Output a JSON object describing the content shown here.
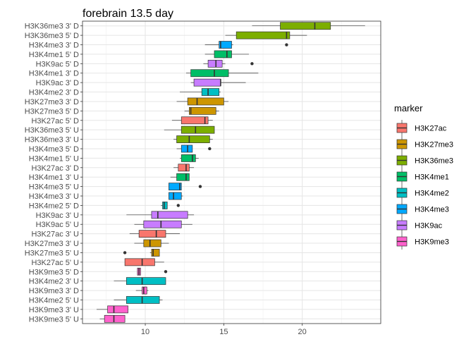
{
  "chart_data": {
    "type": "boxplot",
    "orientation": "horizontal",
    "title": "forebrain 13.5 day",
    "xlim": [
      6.0,
      25.0
    ],
    "x_ticks": [
      10,
      15,
      20
    ],
    "grid": true,
    "legend_position": "right",
    "legend": {
      "title": "marker",
      "entries": [
        {
          "name": "H3K27ac",
          "color": "#F8766D"
        },
        {
          "name": "H3K27me3",
          "color": "#CD9600"
        },
        {
          "name": "H3K36me3",
          "color": "#7CAE00"
        },
        {
          "name": "H3K4me1",
          "color": "#00BE67"
        },
        {
          "name": "H3K4me2",
          "color": "#00BFC4"
        },
        {
          "name": "H3K4me3",
          "color": "#00A9FF"
        },
        {
          "name": "H3K9ac",
          "color": "#C77CFF"
        },
        {
          "name": "H3K9me3",
          "color": "#FF61CC"
        }
      ]
    },
    "boxes": [
      {
        "label": "H3K36me3 3' D",
        "marker": "H3K36me3",
        "min": 16.8,
        "q1": 18.6,
        "median": 20.8,
        "q3": 21.8,
        "max": 24.0,
        "outliers": []
      },
      {
        "label": "H3K36me3 5' D",
        "marker": "H3K36me3",
        "min": 15.1,
        "q1": 15.8,
        "median": 19.0,
        "q3": 19.2,
        "max": 20.3,
        "outliers": []
      },
      {
        "label": "H3K4me3 3' D",
        "marker": "H3K4me3",
        "min": 13.8,
        "q1": 14.7,
        "median": 14.8,
        "q3": 15.5,
        "max": 15.6,
        "outliers": [
          19.0
        ]
      },
      {
        "label": "H3K4me1 5' D",
        "marker": "H3K4me1",
        "min": 13.8,
        "q1": 14.4,
        "median": 15.2,
        "q3": 15.5,
        "max": 16.6,
        "outliers": []
      },
      {
        "label": "H3K9ac 5' D",
        "marker": "H3K9ac",
        "min": 13.7,
        "q1": 14.0,
        "median": 14.5,
        "q3": 14.9,
        "max": 15.1,
        "outliers": [
          16.8
        ]
      },
      {
        "label": "H3K4me1 3' D",
        "marker": "H3K4me1",
        "min": 12.6,
        "q1": 12.9,
        "median": 14.4,
        "q3": 15.3,
        "max": 17.2,
        "outliers": []
      },
      {
        "label": "H3K9ac 3' D",
        "marker": "H3K9ac",
        "min": 12.9,
        "q1": 13.1,
        "median": 14.8,
        "q3": 14.8,
        "max": 16.4,
        "outliers": []
      },
      {
        "label": "H3K4me2 3' D",
        "marker": "H3K4me2",
        "min": 12.2,
        "q1": 13.6,
        "median": 14.0,
        "q3": 14.7,
        "max": 14.8,
        "outliers": []
      },
      {
        "label": "H3K27me3 3' D",
        "marker": "H3K27me3",
        "min": 12.0,
        "q1": 12.7,
        "median": 13.3,
        "q3": 15.0,
        "max": 15.3,
        "outliers": []
      },
      {
        "label": "H3K27me3 5' D",
        "marker": "H3K27me3",
        "min": 12.5,
        "q1": 12.8,
        "median": 12.9,
        "q3": 14.5,
        "max": 14.7,
        "outliers": []
      },
      {
        "label": "H3K27ac 5' D",
        "marker": "H3K27ac",
        "min": 11.7,
        "q1": 12.3,
        "median": 13.8,
        "q3": 14.0,
        "max": 14.3,
        "outliers": []
      },
      {
        "label": "H3K36me3 5' U",
        "marker": "H3K36me3",
        "min": 11.2,
        "q1": 12.3,
        "median": 13.2,
        "q3": 14.4,
        "max": 14.4,
        "outliers": []
      },
      {
        "label": "H3K36me3 3' U",
        "marker": "H3K36me3",
        "min": 11.8,
        "q1": 12.0,
        "median": 12.8,
        "q3": 14.1,
        "max": 14.3,
        "outliers": []
      },
      {
        "label": "H3K4me3 5' D",
        "marker": "H3K4me3",
        "min": 12.0,
        "q1": 12.3,
        "median": 12.7,
        "q3": 13.0,
        "max": 13.0,
        "outliers": [
          14.1
        ]
      },
      {
        "label": "H3K4me1 5' U",
        "marker": "H3K4me1",
        "min": 12.2,
        "q1": 12.3,
        "median": 13.0,
        "q3": 13.2,
        "max": 13.4,
        "outliers": []
      },
      {
        "label": "H3K27ac 3' D",
        "marker": "H3K27ac",
        "min": 11.8,
        "q1": 12.1,
        "median": 12.6,
        "q3": 12.8,
        "max": 13.1,
        "outliers": []
      },
      {
        "label": "H3K4me1 3' U",
        "marker": "H3K4me1",
        "min": 11.6,
        "q1": 12.0,
        "median": 12.6,
        "q3": 12.8,
        "max": 12.8,
        "outliers": []
      },
      {
        "label": "H3K4me3 5' U",
        "marker": "H3K4me3",
        "min": 11.5,
        "q1": 11.5,
        "median": 12.2,
        "q3": 12.3,
        "max": 12.3,
        "outliers": [
          13.5
        ]
      },
      {
        "label": "H3K4me3 3' U",
        "marker": "H3K4me3",
        "min": 11.5,
        "q1": 11.5,
        "median": 11.8,
        "q3": 12.3,
        "max": 12.4,
        "outliers": []
      },
      {
        "label": "H3K4me2 5' D",
        "marker": "H3K4me2",
        "min": 11.0,
        "q1": 11.1,
        "median": 11.2,
        "q3": 11.4,
        "max": 11.4,
        "outliers": [
          12.1
        ]
      },
      {
        "label": "H3K9ac 3' U",
        "marker": "H3K9ac",
        "min": 8.8,
        "q1": 10.4,
        "median": 10.8,
        "q3": 12.7,
        "max": 13.1,
        "outliers": []
      },
      {
        "label": "H3K9ac 5' U",
        "marker": "H3K9ac",
        "min": 9.3,
        "q1": 9.9,
        "median": 11.0,
        "q3": 12.3,
        "max": 13.0,
        "outliers": []
      },
      {
        "label": "H3K27ac 3' U",
        "marker": "H3K27ac",
        "min": 9.0,
        "q1": 9.6,
        "median": 10.7,
        "q3": 11.3,
        "max": 12.2,
        "outliers": []
      },
      {
        "label": "H3K27me3 3' U",
        "marker": "H3K27me3",
        "min": 9.3,
        "q1": 9.9,
        "median": 10.3,
        "q3": 11.0,
        "max": 11.5,
        "outliers": []
      },
      {
        "label": "H3K27me3 5' U",
        "marker": "H3K27me3",
        "min": 10.3,
        "q1": 10.4,
        "median": 10.5,
        "q3": 10.9,
        "max": 10.9,
        "outliers": [
          8.7
        ]
      },
      {
        "label": "H3K27ac 5' U",
        "marker": "H3K27ac",
        "min": 8.7,
        "q1": 8.7,
        "median": 9.8,
        "q3": 10.6,
        "max": 11.2,
        "outliers": []
      },
      {
        "label": "H3K9me3 5' D",
        "marker": "H3K9me3",
        "min": 9.5,
        "q1": 9.5,
        "median": 9.6,
        "q3": 9.7,
        "max": 9.7,
        "outliers": [
          11.3
        ]
      },
      {
        "label": "H3K4me2 3' U",
        "marker": "H3K4me2",
        "min": 8.0,
        "q1": 8.8,
        "median": 9.8,
        "q3": 11.3,
        "max": 11.3,
        "outliers": []
      },
      {
        "label": "H3K9me3 3' D",
        "marker": "H3K9me3",
        "min": 9.4,
        "q1": 9.8,
        "median": 9.9,
        "q3": 10.1,
        "max": 10.2,
        "outliers": []
      },
      {
        "label": "H3K4me2 5' U",
        "marker": "H3K4me2",
        "min": 8.0,
        "q1": 8.8,
        "median": 9.8,
        "q3": 10.9,
        "max": 11.1,
        "outliers": []
      },
      {
        "label": "H3K9me3 3' U",
        "marker": "H3K9me3",
        "min": 6.9,
        "q1": 7.6,
        "median": 8.0,
        "q3": 8.9,
        "max": 8.9,
        "outliers": []
      },
      {
        "label": "H3K9me3 5' U",
        "marker": "H3K9me3",
        "min": 7.1,
        "q1": 7.4,
        "median": 8.0,
        "q3": 8.7,
        "max": 8.7,
        "outliers": []
      }
    ]
  }
}
